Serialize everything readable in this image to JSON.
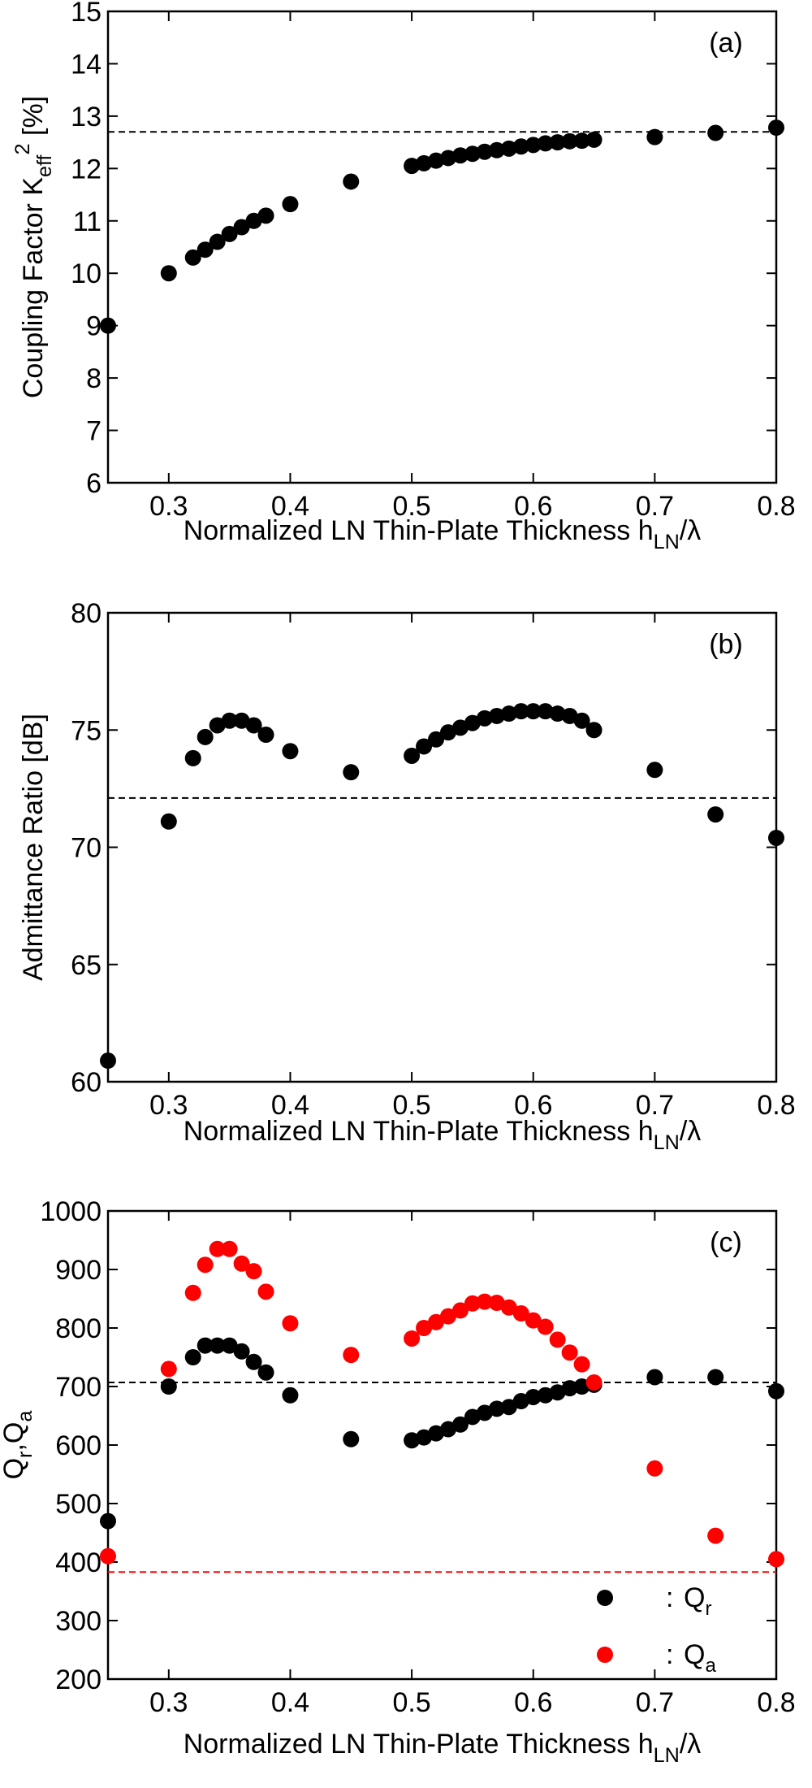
{
  "chart_data": [
    {
      "type": "scatter",
      "panel_label": "(a)",
      "ylabel": [
        {
          "t": "Coupling  Factor  K"
        },
        {
          "t": "eff",
          "pos": "sub"
        },
        {
          "t": "2",
          "pos": "sup"
        },
        {
          "t": "  [%]"
        }
      ],
      "xlabel": [
        {
          "t": "Normalized  LN  Thin-Plate  Thickness  h"
        },
        {
          "t": "LN",
          "pos": "sub"
        },
        {
          "t": "/λ"
        }
      ],
      "x": [
        0.25,
        0.3,
        0.32,
        0.33,
        0.34,
        0.35,
        0.36,
        0.37,
        0.38,
        0.4,
        0.45,
        0.5,
        0.51,
        0.52,
        0.53,
        0.54,
        0.55,
        0.56,
        0.57,
        0.58,
        0.59,
        0.6,
        0.61,
        0.62,
        0.63,
        0.64,
        0.65,
        0.7,
        0.75,
        0.8
      ],
      "series": [
        {
          "color": "#000000",
          "values": [
            9.0,
            10.0,
            10.3,
            10.45,
            10.6,
            10.75,
            10.88,
            11.0,
            11.1,
            11.32,
            11.75,
            12.05,
            12.1,
            12.15,
            12.2,
            12.25,
            12.28,
            12.32,
            12.35,
            12.38,
            12.42,
            12.45,
            12.48,
            12.5,
            12.52,
            12.53,
            12.55,
            12.6,
            12.68,
            12.78
          ]
        }
      ],
      "hlines": [
        {
          "value": 12.7,
          "color": "#000000"
        }
      ],
      "xlim": [
        0.25,
        0.8
      ],
      "xticks": [
        0.3,
        0.4,
        0.5,
        0.6,
        0.7,
        0.8
      ],
      "ylim": [
        6,
        15
      ],
      "yticks": [
        6,
        7,
        8,
        9,
        10,
        11,
        12,
        13,
        14,
        15
      ]
    },
    {
      "type": "scatter",
      "panel_label": "(b)",
      "ylabel": [
        {
          "t": "Admittance  Ratio  [dB]"
        }
      ],
      "xlabel": [
        {
          "t": "Normalized  LN  Thin-Plate  Thickness  h"
        },
        {
          "t": "LN",
          "pos": "sub"
        },
        {
          "t": "/λ"
        }
      ],
      "x": [
        0.25,
        0.3,
        0.32,
        0.33,
        0.34,
        0.35,
        0.36,
        0.37,
        0.38,
        0.4,
        0.45,
        0.5,
        0.51,
        0.52,
        0.53,
        0.54,
        0.55,
        0.56,
        0.57,
        0.58,
        0.59,
        0.6,
        0.61,
        0.62,
        0.63,
        0.64,
        0.65,
        0.7,
        0.75,
        0.8
      ],
      "series": [
        {
          "color": "#000000",
          "values": [
            60.9,
            71.1,
            73.8,
            74.7,
            75.2,
            75.4,
            75.4,
            75.2,
            74.8,
            74.1,
            73.2,
            73.9,
            74.3,
            74.6,
            74.9,
            75.1,
            75.3,
            75.5,
            75.6,
            75.7,
            75.8,
            75.8,
            75.8,
            75.7,
            75.6,
            75.4,
            75.0,
            73.3,
            71.4,
            70.4
          ]
        }
      ],
      "hlines": [
        {
          "value": 72.1,
          "color": "#000000"
        }
      ],
      "xlim": [
        0.25,
        0.8
      ],
      "xticks": [
        0.3,
        0.4,
        0.5,
        0.6,
        0.7,
        0.8
      ],
      "ylim": [
        60,
        80
      ],
      "yticks": [
        60,
        65,
        70,
        75,
        80
      ]
    },
    {
      "type": "scatter",
      "panel_label": "(c)",
      "ylabel": [
        {
          "t": "Q"
        },
        {
          "t": "r",
          "pos": "sub"
        },
        {
          "t": ",Q"
        },
        {
          "t": "a",
          "pos": "sub"
        }
      ],
      "xlabel": [
        {
          "t": "Normalized  LN  Thin-Plate  Thickness  h"
        },
        {
          "t": "LN",
          "pos": "sub"
        },
        {
          "t": "/λ"
        }
      ],
      "x": [
        0.25,
        0.3,
        0.32,
        0.33,
        0.34,
        0.35,
        0.36,
        0.37,
        0.38,
        0.4,
        0.45,
        0.5,
        0.51,
        0.52,
        0.53,
        0.54,
        0.55,
        0.56,
        0.57,
        0.58,
        0.59,
        0.6,
        0.61,
        0.62,
        0.63,
        0.64,
        0.65,
        0.7,
        0.75,
        0.8
      ],
      "legend_sep": ":",
      "series": [
        {
          "name": "Q",
          "name_sub": "r",
          "color": "#000000",
          "values": [
            470,
            700,
            750,
            770,
            770,
            770,
            760,
            742,
            724,
            685,
            610,
            608,
            613,
            620,
            627,
            635,
            648,
            655,
            662,
            665,
            675,
            682,
            685,
            690,
            697,
            700,
            703,
            716,
            716,
            692
          ]
        },
        {
          "name": "Q",
          "name_sub": "a",
          "color": "#ff0000",
          "values": [
            410,
            730,
            860,
            908,
            935,
            935,
            910,
            897,
            862,
            808,
            754,
            782,
            800,
            810,
            820,
            830,
            842,
            845,
            843,
            835,
            825,
            813,
            802,
            780,
            758,
            738,
            707,
            560,
            445,
            405
          ]
        }
      ],
      "hlines": [
        {
          "value": 707,
          "color": "#000000"
        },
        {
          "value": 383,
          "color": "#ff0000"
        }
      ],
      "xlim": [
        0.25,
        0.8
      ],
      "xticks": [
        0.3,
        0.4,
        0.5,
        0.6,
        0.7,
        0.8
      ],
      "ylim": [
        200,
        1000
      ],
      "yticks": [
        200,
        300,
        400,
        500,
        600,
        700,
        800,
        900,
        1000
      ]
    }
  ]
}
